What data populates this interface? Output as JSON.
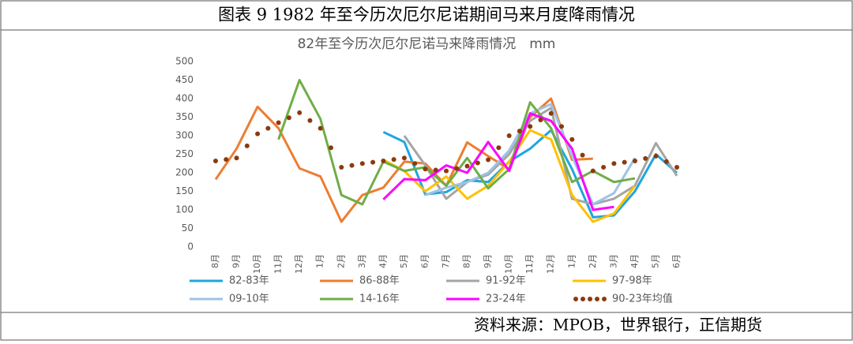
{
  "header": "图表 9 1982 年至今历次厄尔尼诺期间马来月度降雨情况",
  "source": "资料来源：MPOB，世界银行，正信期货",
  "chart_data": {
    "type": "line",
    "title": "82年至今历次厄尔尼诺马来降雨情况　mm",
    "categories": [
      "8月",
      "9月",
      "10月",
      "11月",
      "12月",
      "1月",
      "2月",
      "3月",
      "4月",
      "5月",
      "6月",
      "7月",
      "8月",
      "9月",
      "10月",
      "11月",
      "12月",
      "1月",
      "2月",
      "3月",
      "4月",
      "5月",
      "6月"
    ],
    "ylim": [
      0,
      500
    ],
    "yticks": [
      0,
      50,
      100,
      150,
      200,
      250,
      300,
      350,
      400,
      450,
      500
    ],
    "grid": false,
    "series": [
      {
        "name": "82-83年",
        "color": "#1fa6de",
        "values": [
          null,
          null,
          null,
          null,
          null,
          null,
          null,
          null,
          310,
          283,
          142,
          148,
          180,
          175,
          230,
          265,
          315,
          210,
          80,
          85,
          150,
          250,
          200
        ]
      },
      {
        "name": "86-88年",
        "color": "#ed7d31",
        "values": [
          182,
          265,
          378,
          320,
          212,
          190,
          68,
          140,
          160,
          230,
          225,
          165,
          282,
          245,
          210,
          350,
          400,
          235,
          238,
          null,
          null,
          null,
          null
        ]
      },
      {
        "name": "91-92年",
        "color": "#a5a5a5",
        "values": [
          null,
          null,
          null,
          null,
          null,
          null,
          null,
          null,
          null,
          300,
          220,
          130,
          175,
          195,
          250,
          340,
          375,
          130,
          115,
          130,
          165,
          280,
          192
        ]
      },
      {
        "name": "97-98年",
        "color": "#ffc000",
        "values": [
          null,
          null,
          null,
          null,
          null,
          null,
          null,
          null,
          235,
          205,
          150,
          190,
          130,
          165,
          230,
          315,
          290,
          140,
          68,
          90,
          165,
          null,
          null
        ]
      },
      {
        "name": "09-10年",
        "color": "#9dc3e6",
        "values": [
          null,
          null,
          null,
          null,
          null,
          null,
          null,
          null,
          null,
          null,
          140,
          160,
          175,
          200,
          260,
          360,
          385,
          245,
          115,
          145,
          240,
          null,
          null
        ]
      },
      {
        "name": "14-16年",
        "color": "#70ad47",
        "values": [
          null,
          null,
          null,
          290,
          450,
          345,
          140,
          115,
          230,
          205,
          215,
          165,
          240,
          158,
          210,
          390,
          320,
          175,
          205,
          175,
          185,
          null,
          null
        ]
      },
      {
        "name": "23-24年",
        "color": "#ff00ff",
        "values": [
          null,
          null,
          null,
          null,
          null,
          null,
          null,
          null,
          128,
          183,
          180,
          220,
          200,
          283,
          205,
          360,
          340,
          265,
          100,
          108,
          null,
          null,
          null
        ]
      },
      {
        "name": "90-23年均值",
        "color": "#8b3a0e",
        "dotted": true,
        "values": [
          232,
          240,
          305,
          335,
          362,
          320,
          215,
          225,
          232,
          240,
          210,
          205,
          218,
          235,
          300,
          325,
          360,
          290,
          205,
          225,
          232,
          245,
          215
        ]
      }
    ]
  }
}
